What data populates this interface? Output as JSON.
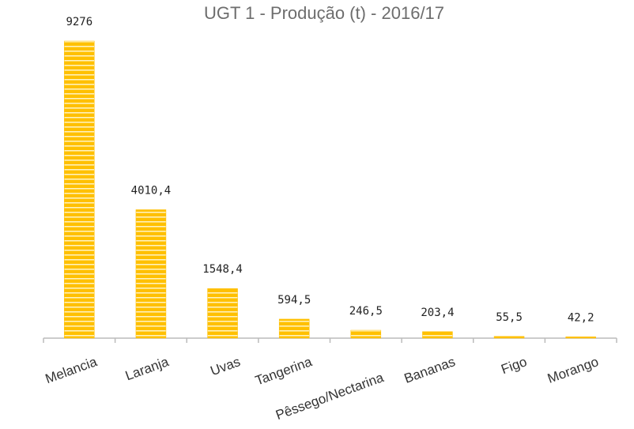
{
  "chart_data": {
    "type": "bar",
    "title": "UGT 1 - Produção (t) - 2016/17",
    "categories": [
      "Melancia",
      "Laranja",
      "Uvas",
      "Tangerina",
      "Pêssego/Nectarina",
      "Bananas",
      "Figo",
      "Morango"
    ],
    "values": [
      9276,
      4010.4,
      1548.4,
      594.5,
      246.5,
      203.4,
      55.5,
      42.2
    ],
    "value_labels": [
      "9276",
      "4010,4",
      "1548,4",
      "594,5",
      "246,5",
      "203,4",
      "55,5",
      "42,2"
    ],
    "color": "#ffc000"
  }
}
